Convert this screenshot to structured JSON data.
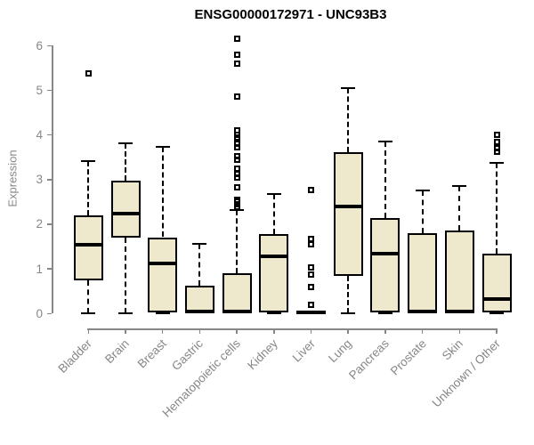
{
  "chart_data": {
    "type": "boxplot",
    "title": "ENSG00000172971 - UNC93B3",
    "ylabel": "Expression",
    "xlabel": "",
    "ylim": [
      0,
      6
    ],
    "yticks": [
      0,
      1,
      2,
      3,
      4,
      5,
      6
    ],
    "grid": false,
    "legend": "none",
    "categories": [
      "Bladder",
      "Brain",
      "Breast",
      "Gastric",
      "Hematopoietic cells",
      "Kidney",
      "Liver",
      "Lung",
      "Pancreas",
      "Prostate",
      "Skin",
      "Unknown / Other"
    ],
    "boxes": [
      {
        "category": "Bladder",
        "low": 0,
        "q1": 0.75,
        "median": 1.55,
        "q3": 2.2,
        "high": 3.42,
        "outliers": [
          5.38
        ]
      },
      {
        "category": "Brain",
        "low": 0,
        "q1": 1.7,
        "median": 2.24,
        "q3": 2.98,
        "high": 3.82,
        "outliers": []
      },
      {
        "category": "Breast",
        "low": 0,
        "q1": 0.03,
        "median": 1.12,
        "q3": 1.71,
        "high": 3.73,
        "outliers": []
      },
      {
        "category": "Gastric",
        "low": 0,
        "q1": 0.0,
        "median": 0.05,
        "q3": 0.62,
        "high": 1.57,
        "outliers": []
      },
      {
        "category": "Hematopoietic cells",
        "low": 0,
        "q1": 0.0,
        "median": 0.05,
        "q3": 0.9,
        "high": 2.32,
        "outliers": [
          6.15,
          5.8,
          5.6,
          4.85,
          4.1,
          4.0,
          3.95,
          3.8,
          3.72,
          3.52,
          3.45,
          3.25,
          3.12,
          3.05,
          2.82,
          2.55,
          2.5,
          2.44,
          2.38
        ]
      },
      {
        "category": "Kidney",
        "low": 0,
        "q1": 0.03,
        "median": 1.28,
        "q3": 1.77,
        "high": 2.67,
        "outliers": []
      },
      {
        "category": "Liver",
        "low": 0,
        "q1": 0.0,
        "median": 0.03,
        "q3": 0.06,
        "high": 0.06,
        "outliers": [
          2.77,
          1.67,
          1.55,
          1.04,
          0.88,
          0.6,
          0.2
        ]
      },
      {
        "category": "Lung",
        "low": 0,
        "q1": 0.85,
        "median": 2.4,
        "q3": 3.62,
        "high": 5.05,
        "outliers": []
      },
      {
        "category": "Pancreas",
        "low": 0,
        "q1": 0.02,
        "median": 1.35,
        "q3": 2.14,
        "high": 3.85,
        "outliers": []
      },
      {
        "category": "Prostate",
        "low": 0,
        "q1": 0.0,
        "median": 0.04,
        "q3": 1.79,
        "high": 2.75,
        "outliers": []
      },
      {
        "category": "Skin",
        "low": 0,
        "q1": 0.0,
        "median": 0.04,
        "q3": 1.86,
        "high": 2.85,
        "outliers": []
      },
      {
        "category": "Unknown / Other",
        "low": 0,
        "q1": 0.02,
        "median": 0.33,
        "q3": 1.35,
        "high": 3.37,
        "outliers": [
          4.0,
          3.85,
          3.7,
          3.62
        ]
      }
    ],
    "colors": {
      "box_fill": "#EEE8CD",
      "box_border": "#000000",
      "median": "#000000",
      "whisker": "#000000",
      "outlier": "#000000",
      "axis": "#878787",
      "tick_label": "#878787",
      "title": "#000000"
    }
  }
}
